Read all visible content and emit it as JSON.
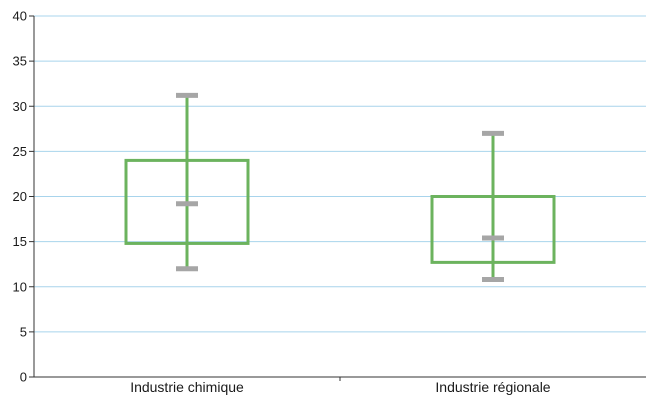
{
  "chart_data": {
    "type": "box",
    "title": "",
    "xlabel": "",
    "ylabel": "",
    "ylim": [
      0,
      40
    ],
    "yticks": [
      0,
      5,
      10,
      15,
      20,
      25,
      30,
      35,
      40
    ],
    "ytick_labels": [
      "0",
      "5",
      "10",
      "15",
      "20",
      "25",
      "30",
      "35",
      "40"
    ],
    "grid": true,
    "legend": "none",
    "categories": [
      "Industrie chimique",
      "Industrie régionale"
    ],
    "boxes": [
      {
        "category": "Industrie chimique",
        "min": 12.0,
        "q1": 14.8,
        "median": 19.2,
        "q3": 24.0,
        "max": 31.2
      },
      {
        "category": "Industrie régionale",
        "min": 10.8,
        "q1": 12.7,
        "median": 15.4,
        "q3": 20.0,
        "max": 27.0
      }
    ],
    "colors": {
      "box": "#6cb35e",
      "whisker_caps": "#a6a6a6",
      "grid": "#a8d4ec",
      "axis": "#333333"
    }
  }
}
